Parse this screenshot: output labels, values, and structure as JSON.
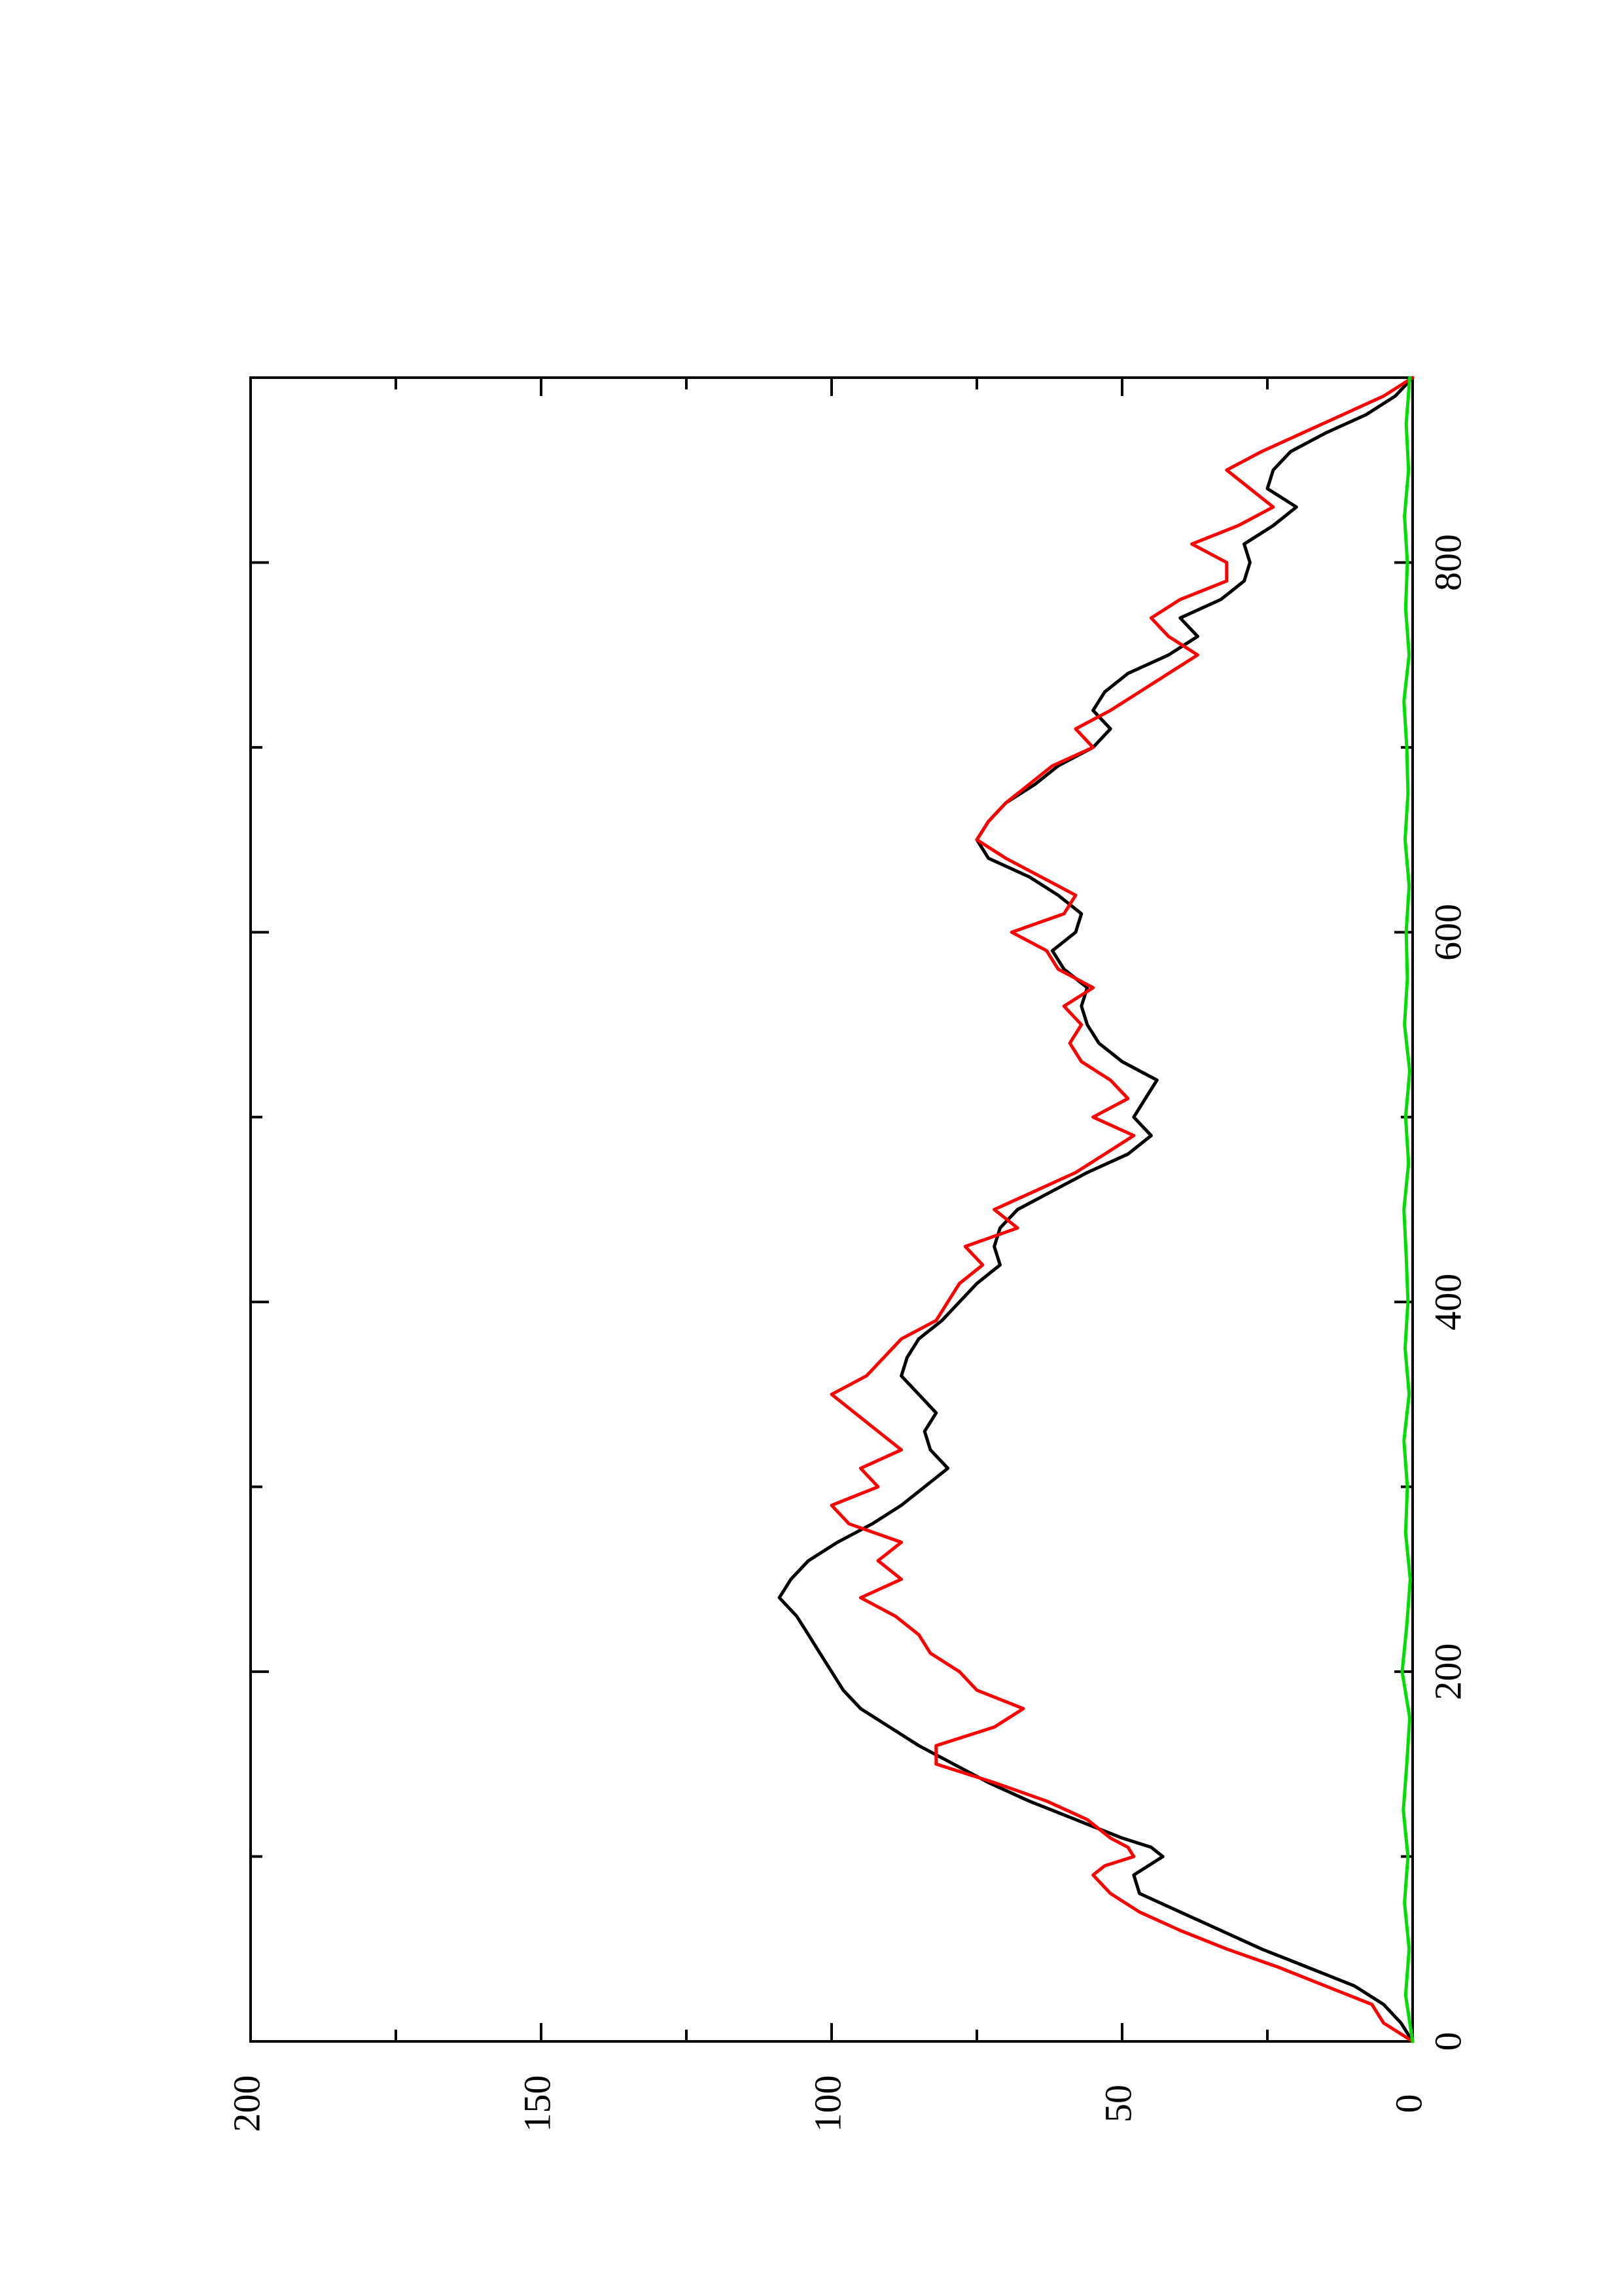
{
  "chart_data": {
    "type": "line",
    "orientation": "rotated-90-ccw",
    "title": "",
    "xlabel": "",
    "ylabel": "",
    "xlim": [
      0,
      900
    ],
    "ylim": [
      0,
      200
    ],
    "x_ticks": [
      0,
      200,
      400,
      600,
      800
    ],
    "y_ticks": [
      0,
      50,
      100,
      150,
      200
    ],
    "x_tick_labels": [
      "0",
      "200",
      "400",
      "600",
      "800"
    ],
    "y_tick_labels": [
      "0",
      "50",
      "100",
      "150",
      "200"
    ],
    "grid": false,
    "legend": "none",
    "series": [
      {
        "color": "#000000",
        "x": [
          0,
          10,
          20,
          30,
          40,
          50,
          60,
          70,
          80,
          90,
          100,
          105,
          110,
          120,
          130,
          140,
          150,
          160,
          170,
          180,
          190,
          200,
          210,
          220,
          230,
          240,
          250,
          260,
          270,
          280,
          290,
          300,
          310,
          320,
          330,
          340,
          350,
          360,
          370,
          380,
          390,
          400,
          410,
          420,
          430,
          440,
          450,
          460,
          470,
          480,
          490,
          500,
          510,
          520,
          530,
          540,
          550,
          560,
          570,
          580,
          590,
          600,
          610,
          620,
          630,
          640,
          650,
          660,
          670,
          680,
          690,
          700,
          710,
          720,
          730,
          740,
          750,
          760,
          770,
          780,
          790,
          800,
          810,
          820,
          830,
          840,
          850,
          860,
          870,
          880,
          890,
          900
        ],
        "values": [
          0,
          2,
          5,
          10,
          18,
          26,
          33,
          40,
          47,
          48,
          43,
          45,
          50,
          58,
          66,
          73,
          79,
          85,
          90,
          95,
          98,
          100,
          102,
          104,
          106,
          109,
          107,
          104,
          99,
          93,
          88,
          84,
          80,
          83,
          84,
          82,
          85,
          88,
          87,
          85,
          81,
          78,
          75,
          71,
          72,
          71,
          68,
          62,
          56,
          49,
          45,
          48,
          46,
          44,
          50,
          54,
          56,
          57,
          56,
          60,
          62,
          58,
          57,
          61,
          66,
          73,
          75,
          73,
          70,
          65,
          61,
          55,
          52,
          55,
          53,
          49,
          42,
          37,
          40,
          33,
          29,
          28,
          29,
          24,
          20,
          25,
          24,
          21,
          15,
          8,
          3,
          0
        ]
      },
      {
        "color": "#ff0000",
        "x": [
          0,
          10,
          20,
          30,
          40,
          50,
          60,
          70,
          80,
          90,
          95,
          100,
          105,
          110,
          120,
          130,
          140,
          150,
          160,
          170,
          180,
          190,
          200,
          210,
          220,
          230,
          240,
          250,
          260,
          270,
          280,
          290,
          300,
          310,
          320,
          330,
          340,
          350,
          360,
          370,
          380,
          390,
          400,
          410,
          420,
          430,
          440,
          450,
          460,
          470,
          480,
          490,
          500,
          510,
          520,
          530,
          540,
          550,
          560,
          570,
          580,
          590,
          600,
          610,
          620,
          630,
          640,
          650,
          660,
          670,
          680,
          690,
          700,
          710,
          720,
          730,
          740,
          750,
          760,
          770,
          780,
          790,
          800,
          810,
          820,
          830,
          840,
          850,
          860,
          870,
          880,
          890,
          900
        ],
        "values": [
          0,
          5,
          7,
          15,
          23,
          32,
          40,
          47,
          52,
          55,
          53,
          48,
          49,
          52,
          56,
          63,
          72,
          82,
          82,
          72,
          67,
          75,
          78,
          83,
          85,
          89,
          95,
          88,
          92,
          88,
          97,
          100,
          92,
          95,
          88,
          92,
          96,
          100,
          94,
          91,
          88,
          82,
          80,
          78,
          74,
          77,
          68,
          72,
          65,
          58,
          53,
          48,
          55,
          49,
          52,
          57,
          59,
          57,
          60,
          55,
          61,
          63,
          69,
          60,
          58,
          64,
          70,
          75,
          73,
          70,
          66,
          62,
          55,
          58,
          52,
          47,
          42,
          37,
          42,
          45,
          40,
          32,
          32,
          38,
          30,
          24,
          28,
          32,
          26,
          19,
          12,
          5,
          0
        ]
      },
      {
        "color": "#00dd00",
        "x": [
          0,
          25,
          50,
          75,
          100,
          125,
          150,
          175,
          200,
          225,
          250,
          275,
          300,
          325,
          350,
          375,
          400,
          425,
          450,
          475,
          500,
          525,
          550,
          575,
          600,
          625,
          650,
          675,
          700,
          725,
          750,
          775,
          800,
          825,
          850,
          875,
          900
        ],
        "values": [
          0,
          1.2,
          0.6,
          1.4,
          0.8,
          1.6,
          1.0,
          0.5,
          1.8,
          1.0,
          0.4,
          1.2,
          0.9,
          1.5,
          0.6,
          1.3,
          0.8,
          1.1,
          1.5,
          0.7,
          1.2,
          0.5,
          1.4,
          0.9,
          1.1,
          0.6,
          1.3,
          0.8,
          1.0,
          1.5,
          0.6,
          1.2,
          0.9,
          1.4,
          0.7,
          1.1,
          0.5
        ]
      }
    ]
  }
}
